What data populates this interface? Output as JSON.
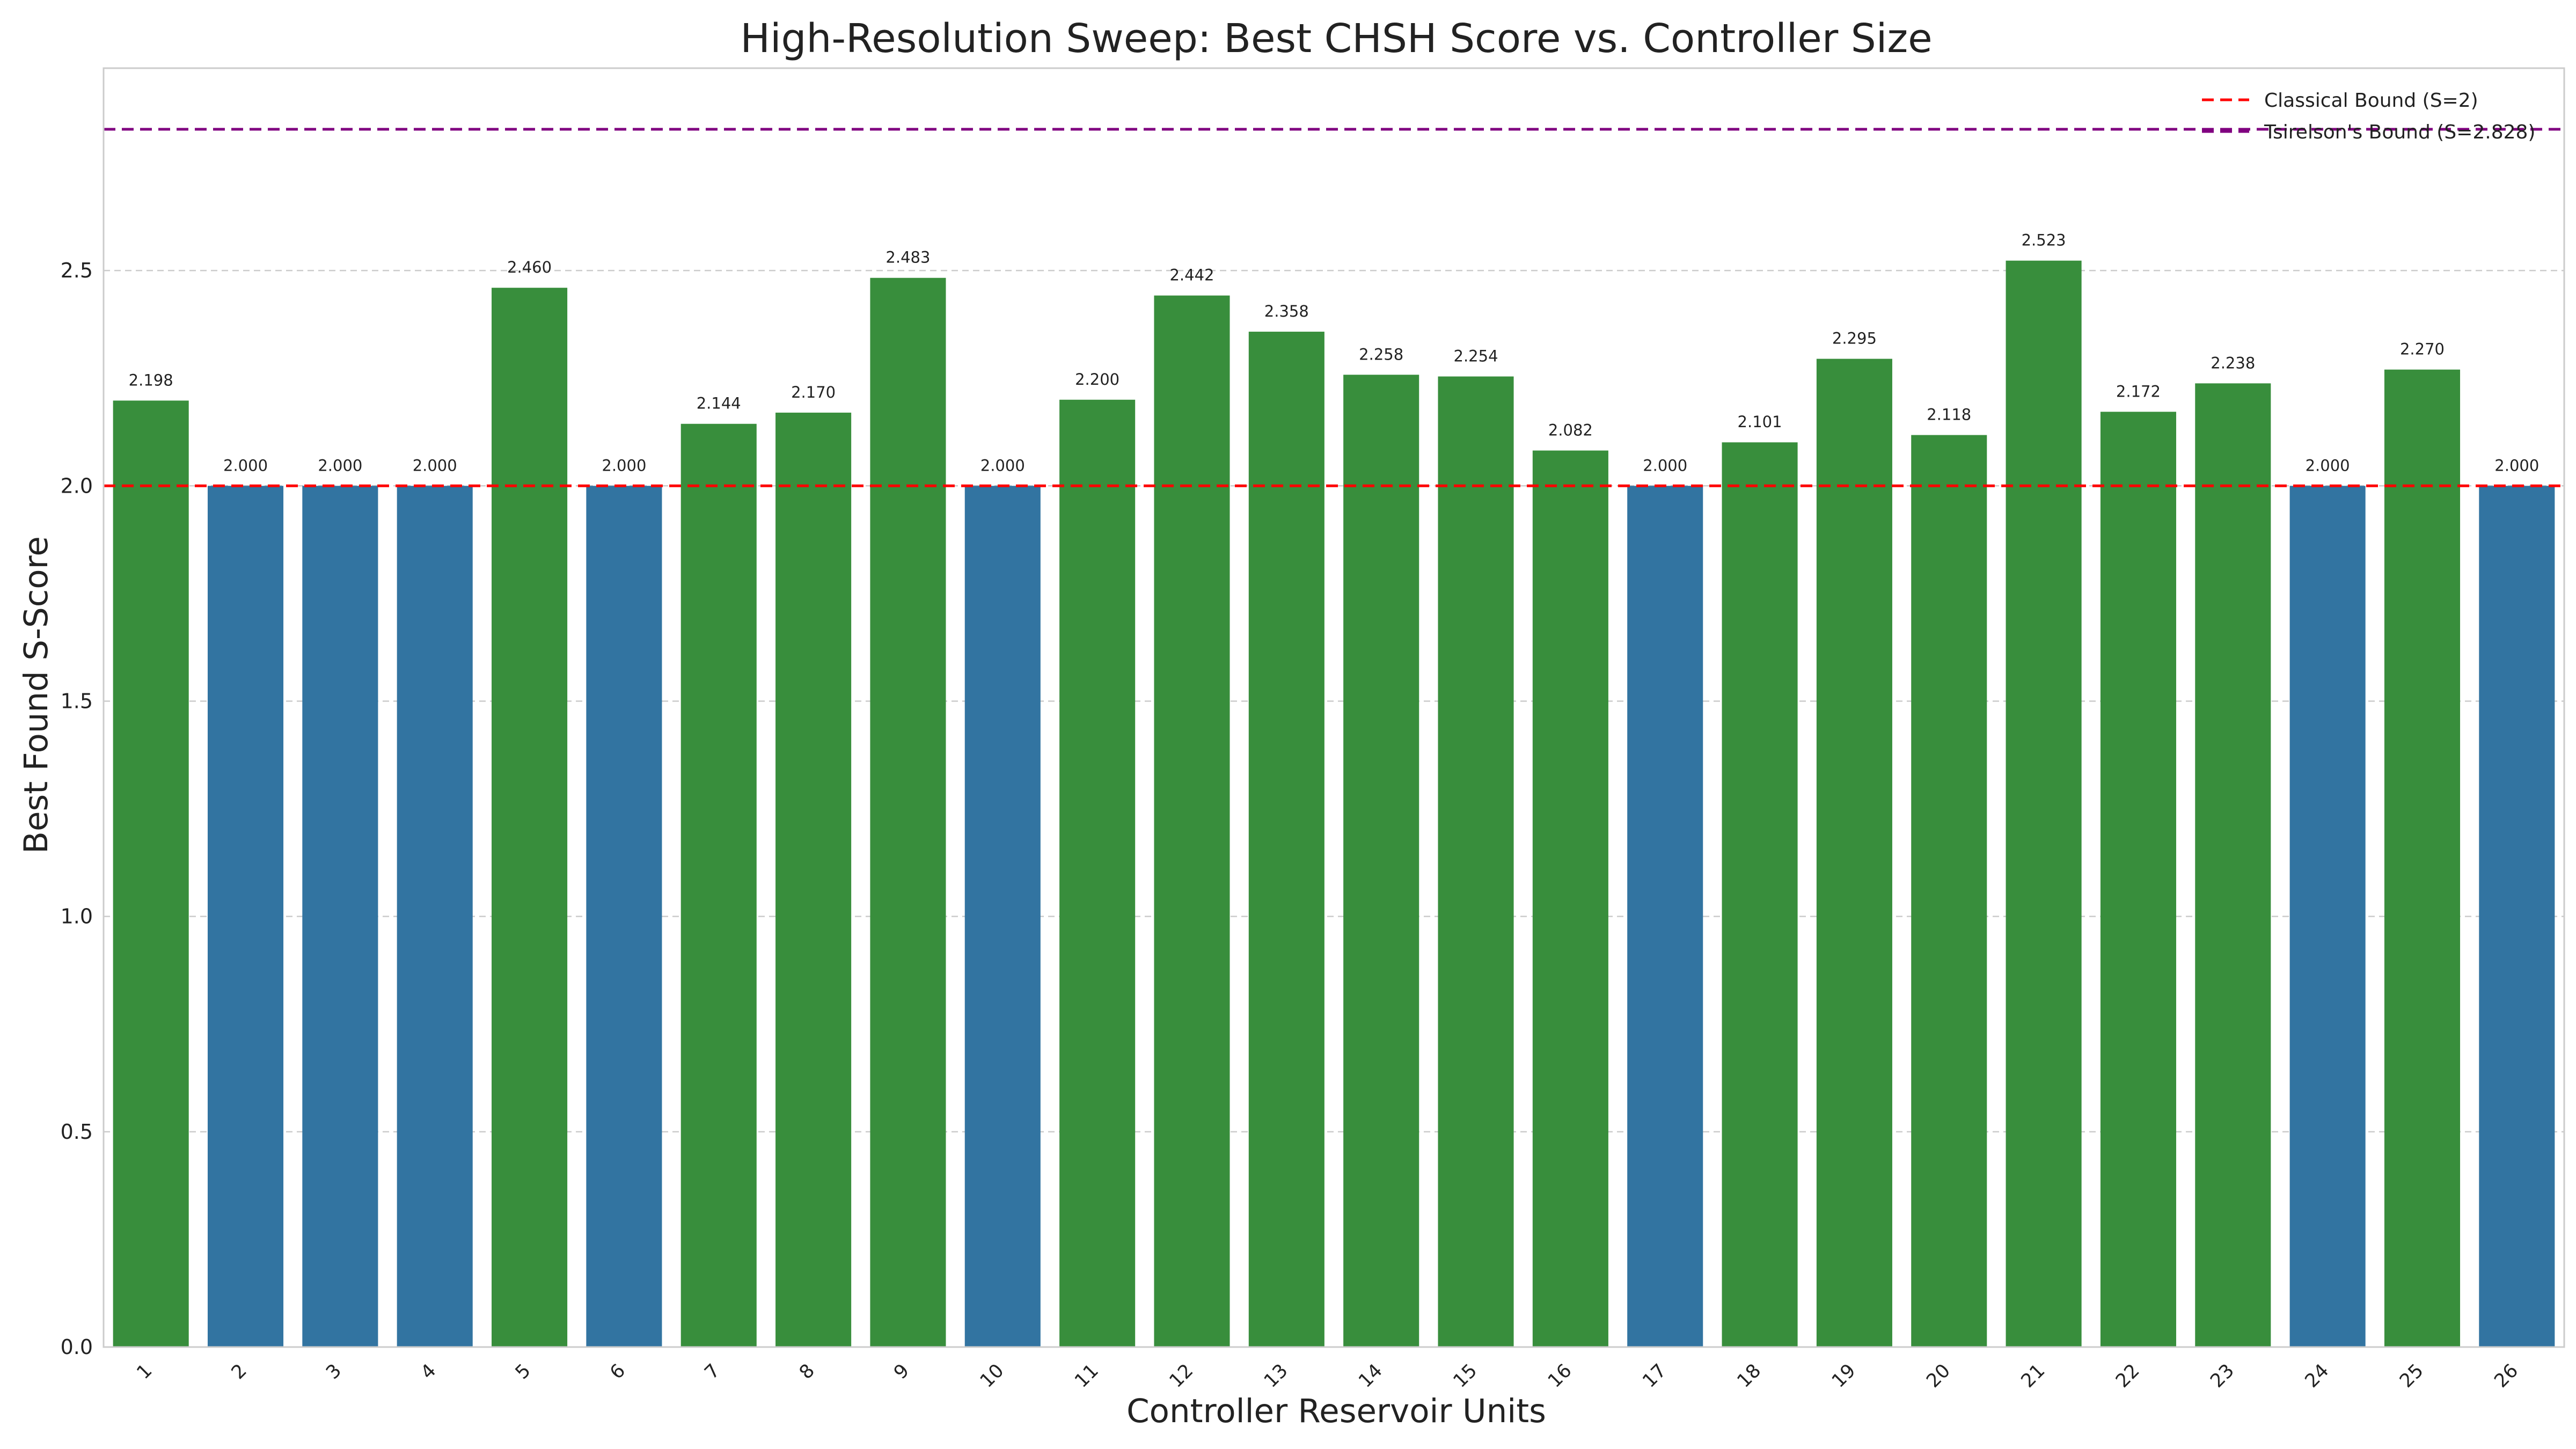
{
  "chart_data": {
    "type": "bar",
    "title": "High-Resolution Sweep: Best CHSH Score vs. Controller Size",
    "xlabel": "Controller Reservoir Units",
    "ylabel": "Best Found S-Score",
    "categories": [
      "1",
      "2",
      "3",
      "4",
      "5",
      "6",
      "7",
      "8",
      "9",
      "10",
      "11",
      "12",
      "13",
      "14",
      "15",
      "16",
      "17",
      "18",
      "19",
      "20",
      "21",
      "22",
      "23",
      "24",
      "25",
      "26"
    ],
    "values": [
      2.198,
      2.0,
      2.0,
      2.0,
      2.46,
      2.0,
      2.144,
      2.17,
      2.483,
      2.0,
      2.2,
      2.442,
      2.358,
      2.258,
      2.254,
      2.082,
      2.0,
      2.101,
      2.295,
      2.118,
      2.523,
      2.172,
      2.238,
      2.0,
      2.27,
      2.0
    ],
    "data_labels": [
      "2.198",
      "2.000",
      "2.000",
      "2.000",
      "2.460",
      "2.000",
      "2.144",
      "2.170",
      "2.483",
      "2.000",
      "2.200",
      "2.442",
      "2.358",
      "2.258",
      "2.254",
      "2.082",
      "2.000",
      "2.101",
      "2.295",
      "2.118",
      "2.523",
      "2.172",
      "2.238",
      "2.000",
      "2.270",
      "2.000"
    ],
    "ylim": [
      0,
      2.97
    ],
    "yticks": [
      0.0,
      0.5,
      1.0,
      1.5,
      2.0,
      2.5
    ],
    "ytick_labels": [
      "0.0",
      "0.5",
      "1.0",
      "1.5",
      "2.0",
      "2.5"
    ],
    "grid": true,
    "colors": {
      "above_bound": "#388e3c",
      "at_bound": "#3274a1"
    },
    "reference_lines": [
      {
        "name": "Classical Bound (S=2)",
        "value": 2.0,
        "color": "#ff0000",
        "style": "dashed"
      },
      {
        "name": "Tsirelson's Bound (S=2.828)",
        "value": 2.828,
        "color": "#800080",
        "style": "dashed"
      }
    ],
    "legend_position": "top-right"
  }
}
